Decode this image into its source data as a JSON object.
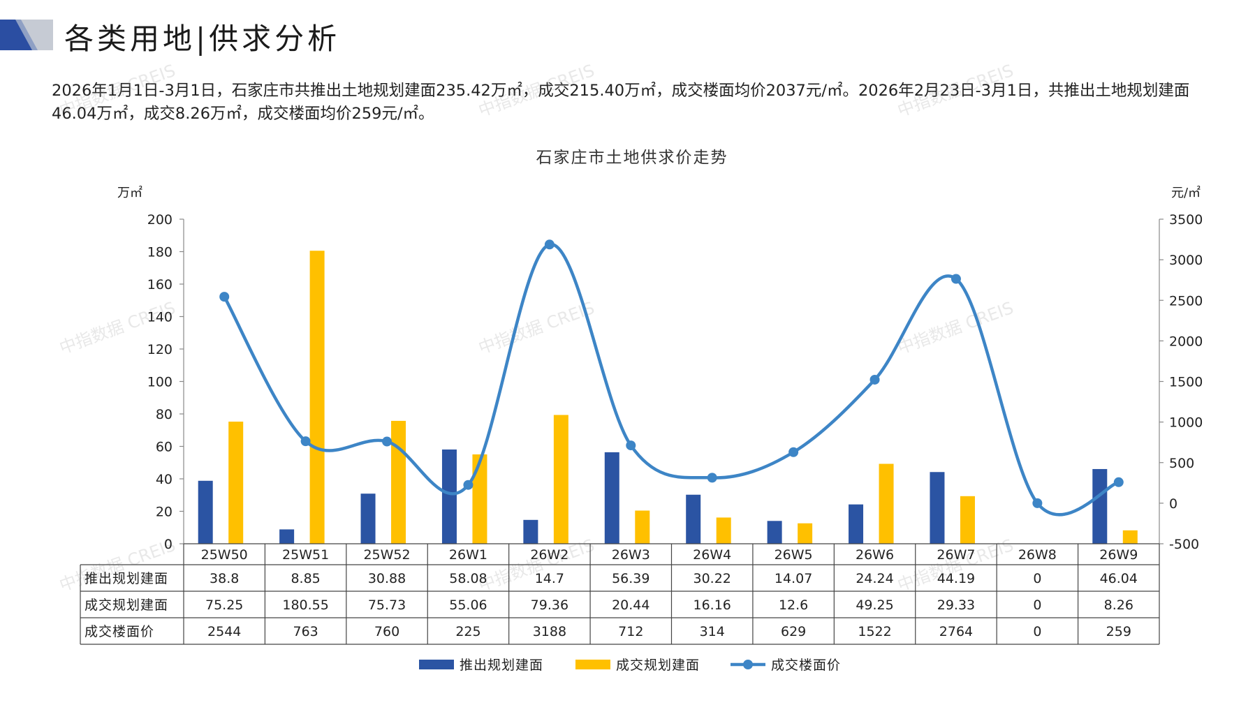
{
  "page": {
    "title": "各类用地|供求分析",
    "summary": "2026年1月1日-3月1日，石家庄市共推出土地规划建面235.42万㎡，成交215.40万㎡，成交楼面均价2037元/㎡。2026年2月23日-3月1日，共推出土地规划建面46.04万㎡，成交8.26万㎡，成交楼面均价259元/㎡。",
    "watermark_text": "中指数据 CREIS"
  },
  "colors": {
    "launched": "#2b54a3",
    "transacted": "#ffc000",
    "price": "#3d85c6",
    "logo_dark": "#2b4ea2",
    "logo_light": "#c6cbd4"
  },
  "chart_data": {
    "type": "bar",
    "title": "石家庄市土地供求价走势",
    "ylabel_left": "万㎡",
    "ylabel_right": "元/㎡",
    "ylim_left": [
      0,
      200
    ],
    "yticks_left": [
      0,
      20,
      40,
      60,
      80,
      100,
      120,
      140,
      160,
      180,
      200
    ],
    "ylim_right": [
      -500,
      3500
    ],
    "yticks_right": [
      -500,
      0,
      500,
      1000,
      1500,
      2000,
      2500,
      3000,
      3500
    ],
    "categories": [
      "25W50",
      "25W51",
      "25W52",
      "26W1",
      "26W2",
      "26W3",
      "26W4",
      "26W5",
      "26W6",
      "26W7",
      "26W8",
      "26W9"
    ],
    "series": [
      {
        "name": "推出规划建面",
        "type": "bar",
        "axis": "left",
        "values": [
          38.8,
          8.85,
          30.88,
          58.08,
          14.7,
          56.39,
          30.22,
          14.07,
          24.24,
          44.19,
          0,
          46.04
        ],
        "labels": [
          "38.8",
          "8.85",
          "30.88",
          "58.08",
          "14.7",
          "56.39",
          "30.22",
          "14.07",
          "24.24",
          "44.19",
          "0",
          "46.04"
        ]
      },
      {
        "name": "成交规划建面",
        "type": "bar",
        "axis": "left",
        "values": [
          75.25,
          180.55,
          75.73,
          55.06,
          79.36,
          20.44,
          16.16,
          12.6,
          49.25,
          29.33,
          0,
          8.26
        ],
        "labels": [
          "75.25",
          "180.55",
          "75.73",
          "55.06",
          "79.36",
          "20.44",
          "16.16",
          "12.6",
          "49.25",
          "29.33",
          "0",
          "8.26"
        ]
      },
      {
        "name": "成交楼面价",
        "type": "line",
        "axis": "right",
        "values": [
          2544,
          763,
          760,
          225,
          3188,
          712,
          314,
          629,
          1522,
          2764,
          0,
          259
        ],
        "labels": [
          "2544",
          "763",
          "760",
          "225",
          "3188",
          "712",
          "314",
          "629",
          "1522",
          "2764",
          "0",
          "259"
        ]
      }
    ],
    "legend": "bottom",
    "grid": false,
    "data_table": true
  }
}
